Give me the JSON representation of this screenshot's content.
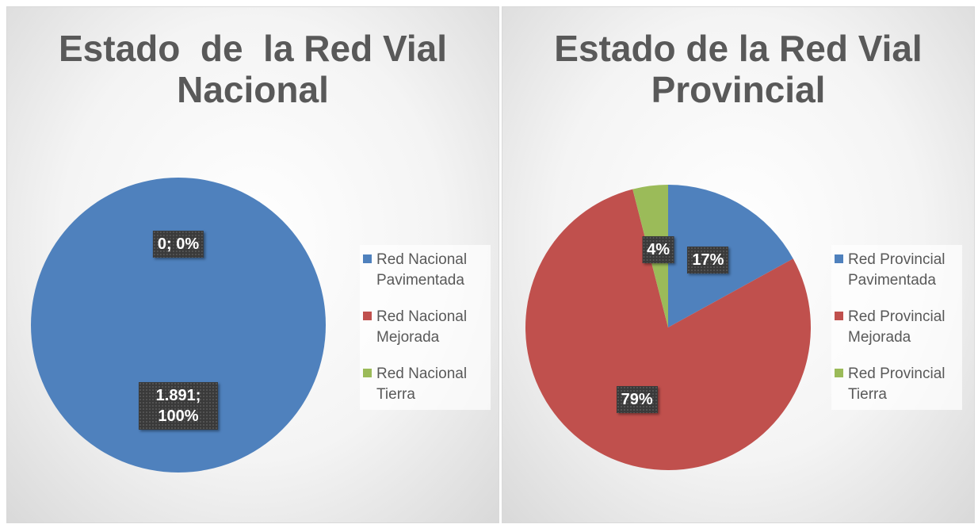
{
  "chart_data": [
    {
      "type": "pie",
      "title": "Estado  de  la Red Vial Nacional",
      "categories": [
        "Red Nacional Pavimentada",
        "Red Nacional Mejorada",
        "Red Nacional Tierra"
      ],
      "values": [
        1891,
        0,
        0
      ],
      "value_labels": [
        "1.891; 100%",
        "0; 0%",
        null
      ],
      "colors": [
        "#4f81bd",
        "#c0504d",
        "#9bbb59"
      ],
      "legend": "right"
    },
    {
      "type": "pie",
      "title": "Estado de la Red Vial Provincial",
      "categories": [
        "Red Provincial Pavimentada",
        "Red Provincial Mejorada",
        "Red Provincial Tierra"
      ],
      "values": [
        17,
        79,
        4
      ],
      "value_labels": [
        "17%",
        "79%",
        "4%"
      ],
      "colors": [
        "#4f81bd",
        "#c0504d",
        "#9bbb59"
      ],
      "legend": "right"
    }
  ]
}
